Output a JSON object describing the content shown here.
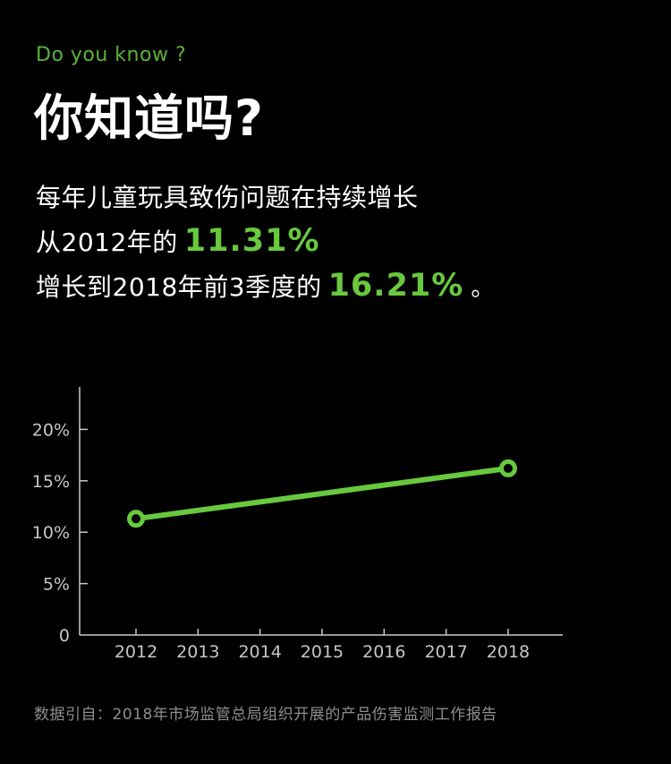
{
  "header": {
    "eyebrow": "Do you know ?",
    "title": "你知道吗?"
  },
  "statement": {
    "line1": "每年儿童玩具致伤问题在持续增长",
    "line2_prefix": "从2012年的",
    "line2_value": "11.31%",
    "line3_prefix": "增长到2018年前3季度的",
    "line3_value": "16.21%",
    "line3_suffix": "。"
  },
  "footer": {
    "source": "数据引自：2018年市场监管总局组织开展的产品伤害监测工作报告"
  },
  "colors": {
    "background": "#000000",
    "eyebrow_green": "#5CB23A",
    "accent_green": "#68C93E",
    "title_white": "#FFFFFF",
    "axis_gray": "#C9C9C9",
    "label_gray": "#C6C6C6",
    "source_gray": "#8E8E8E"
  },
  "chart_data": {
    "type": "line",
    "title": "",
    "xlabel": "",
    "ylabel": "",
    "x": [
      2012,
      2018
    ],
    "y": [
      11.31,
      16.21
    ],
    "x_tick_labels": [
      "2012",
      "2013",
      "2014",
      "2015",
      "2016",
      "2017",
      "2018"
    ],
    "y_tick_values": [
      0,
      5,
      10,
      15,
      20
    ],
    "y_tick_labels": [
      "0",
      "5%",
      "10%",
      "15%",
      "20%"
    ],
    "xlim": [
      2011.1,
      2018.9
    ],
    "ylim": [
      0,
      24
    ],
    "grid": false,
    "legend": false,
    "line_color": "#68C93E",
    "marker": "open-circle",
    "marker_fill": "#000000"
  }
}
